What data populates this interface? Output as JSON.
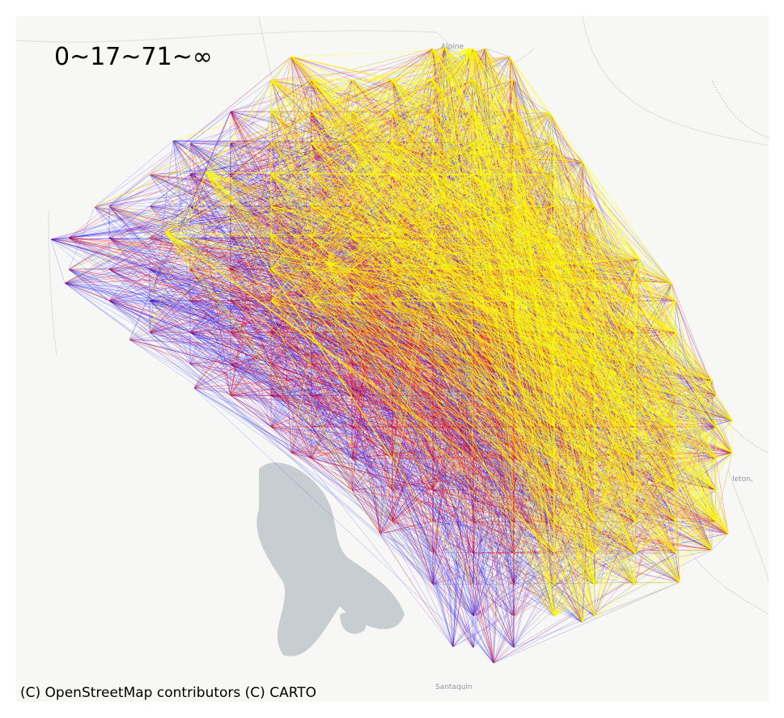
{
  "legend_title": "0~17~71~∞",
  "attribution": "(C) OpenStreetMap contributors (C) CARTO",
  "basemap": {
    "place_labels": [
      "Alpine",
      "Santaquin",
      "leton,"
    ],
    "water_color": "#c8cdd1",
    "land_color": "#f7f7f5",
    "road_color": "#e3e3e0"
  },
  "flow_classes": [
    {
      "name": "0~17",
      "color": "#0000ff"
    },
    {
      "name": "17~71",
      "color": "#ff0000"
    },
    {
      "name": "71~∞",
      "color": "#ffff00"
    }
  ]
}
